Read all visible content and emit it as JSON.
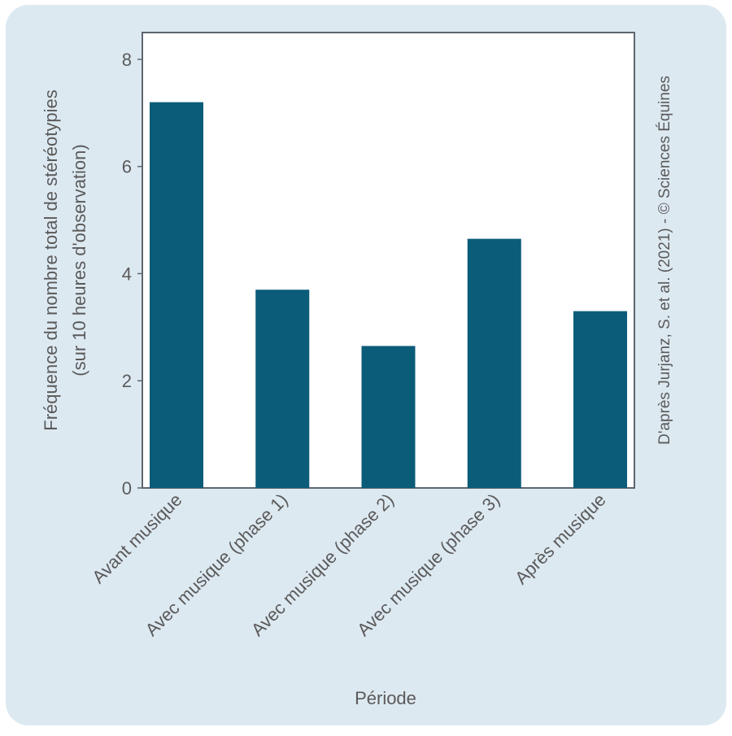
{
  "chart_data": {
    "type": "bar",
    "ylabel": [
      "Fréquence du nombre total de stéréotypies",
      "(sur 10 heures d'observation)"
    ],
    "xlabel": "Période",
    "source": "D'après Jurjanz, S. et al. (2021) - © Sciences Équines",
    "categories": [
      "Avant musique",
      "Avec musique (phase 1)",
      "Avec musique (phase 2)",
      "Avec musique (phase 3)",
      "Après musique"
    ],
    "values": [
      7.2,
      3.7,
      2.65,
      4.65,
      3.3
    ],
    "color": "#0b5c78",
    "ylim": [
      0,
      8.5
    ],
    "yticks": [
      0,
      2,
      4,
      6,
      8
    ],
    "grid": false
  }
}
